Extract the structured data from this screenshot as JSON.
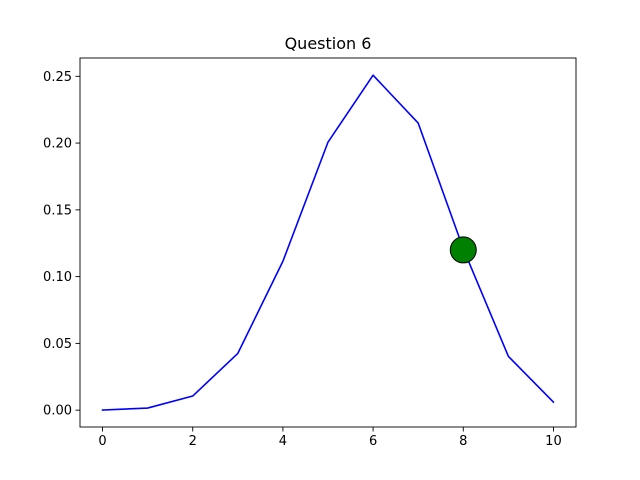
{
  "chart_data": {
    "type": "line",
    "title": "Question 6",
    "xlabel": "",
    "ylabel": "",
    "xlim": [
      -0.5,
      10.5
    ],
    "ylim": [
      -0.0126,
      0.2637
    ],
    "x_ticks": [
      0,
      2,
      4,
      6,
      8,
      10
    ],
    "y_ticks": [
      0.0,
      0.05,
      0.1,
      0.15,
      0.2,
      0.25
    ],
    "x_tick_labels": [
      "0",
      "2",
      "4",
      "6",
      "8",
      "10"
    ],
    "y_tick_labels": [
      "0.00",
      "0.05",
      "0.10",
      "0.15",
      "0.20",
      "0.25"
    ],
    "grid": false,
    "series": [
      {
        "color": "#0000ff",
        "x": [
          0,
          1,
          2,
          3,
          4,
          5,
          6,
          7,
          8,
          9,
          10
        ],
        "y": [
          0.0001,
          0.0016,
          0.0106,
          0.0425,
          0.1115,
          0.2007,
          0.2508,
          0.215,
          0.1209,
          0.0403,
          0.006
        ]
      }
    ],
    "highlight_point": {
      "x": 8,
      "y": 0.12,
      "color": "#008000",
      "edge_color": "#000000"
    }
  }
}
